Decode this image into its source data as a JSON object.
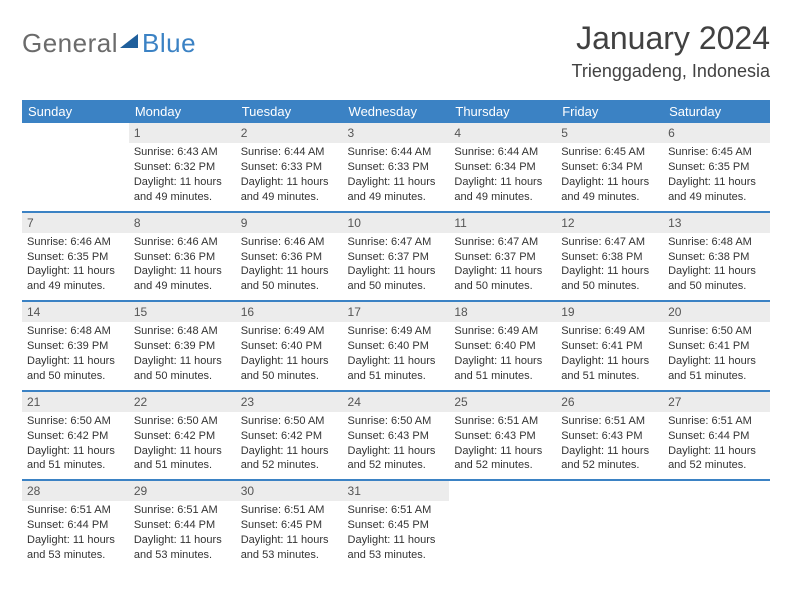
{
  "logo": {
    "general": "General",
    "blue": "Blue"
  },
  "title": "January 2024",
  "location": "Trienggadeng, Indonesia",
  "colors": {
    "header_bg": "#3b82c4",
    "header_fg": "#ffffff",
    "daynum_bg": "#ececec",
    "daynum_fg": "#555555",
    "body_text": "#333333",
    "logo_gray": "#6b6b6b",
    "logo_blue": "#3b82c4",
    "divider": "#3b82c4"
  },
  "typography": {
    "title_fontsize": 32,
    "location_fontsize": 18,
    "dayheader_fontsize": 13,
    "cell_fontsize": 11
  },
  "calendar": {
    "type": "table",
    "columns": [
      "Sunday",
      "Monday",
      "Tuesday",
      "Wednesday",
      "Thursday",
      "Friday",
      "Saturday"
    ],
    "weeks": [
      [
        null,
        {
          "n": "1",
          "sunrise": "6:43 AM",
          "sunset": "6:32 PM",
          "daylight": "11 hours and 49 minutes."
        },
        {
          "n": "2",
          "sunrise": "6:44 AM",
          "sunset": "6:33 PM",
          "daylight": "11 hours and 49 minutes."
        },
        {
          "n": "3",
          "sunrise": "6:44 AM",
          "sunset": "6:33 PM",
          "daylight": "11 hours and 49 minutes."
        },
        {
          "n": "4",
          "sunrise": "6:44 AM",
          "sunset": "6:34 PM",
          "daylight": "11 hours and 49 minutes."
        },
        {
          "n": "5",
          "sunrise": "6:45 AM",
          "sunset": "6:34 PM",
          "daylight": "11 hours and 49 minutes."
        },
        {
          "n": "6",
          "sunrise": "6:45 AM",
          "sunset": "6:35 PM",
          "daylight": "11 hours and 49 minutes."
        }
      ],
      [
        {
          "n": "7",
          "sunrise": "6:46 AM",
          "sunset": "6:35 PM",
          "daylight": "11 hours and 49 minutes."
        },
        {
          "n": "8",
          "sunrise": "6:46 AM",
          "sunset": "6:36 PM",
          "daylight": "11 hours and 49 minutes."
        },
        {
          "n": "9",
          "sunrise": "6:46 AM",
          "sunset": "6:36 PM",
          "daylight": "11 hours and 50 minutes."
        },
        {
          "n": "10",
          "sunrise": "6:47 AM",
          "sunset": "6:37 PM",
          "daylight": "11 hours and 50 minutes."
        },
        {
          "n": "11",
          "sunrise": "6:47 AM",
          "sunset": "6:37 PM",
          "daylight": "11 hours and 50 minutes."
        },
        {
          "n": "12",
          "sunrise": "6:47 AM",
          "sunset": "6:38 PM",
          "daylight": "11 hours and 50 minutes."
        },
        {
          "n": "13",
          "sunrise": "6:48 AM",
          "sunset": "6:38 PM",
          "daylight": "11 hours and 50 minutes."
        }
      ],
      [
        {
          "n": "14",
          "sunrise": "6:48 AM",
          "sunset": "6:39 PM",
          "daylight": "11 hours and 50 minutes."
        },
        {
          "n": "15",
          "sunrise": "6:48 AM",
          "sunset": "6:39 PM",
          "daylight": "11 hours and 50 minutes."
        },
        {
          "n": "16",
          "sunrise": "6:49 AM",
          "sunset": "6:40 PM",
          "daylight": "11 hours and 50 minutes."
        },
        {
          "n": "17",
          "sunrise": "6:49 AM",
          "sunset": "6:40 PM",
          "daylight": "11 hours and 51 minutes."
        },
        {
          "n": "18",
          "sunrise": "6:49 AM",
          "sunset": "6:40 PM",
          "daylight": "11 hours and 51 minutes."
        },
        {
          "n": "19",
          "sunrise": "6:49 AM",
          "sunset": "6:41 PM",
          "daylight": "11 hours and 51 minutes."
        },
        {
          "n": "20",
          "sunrise": "6:50 AM",
          "sunset": "6:41 PM",
          "daylight": "11 hours and 51 minutes."
        }
      ],
      [
        {
          "n": "21",
          "sunrise": "6:50 AM",
          "sunset": "6:42 PM",
          "daylight": "11 hours and 51 minutes."
        },
        {
          "n": "22",
          "sunrise": "6:50 AM",
          "sunset": "6:42 PM",
          "daylight": "11 hours and 51 minutes."
        },
        {
          "n": "23",
          "sunrise": "6:50 AM",
          "sunset": "6:42 PM",
          "daylight": "11 hours and 52 minutes."
        },
        {
          "n": "24",
          "sunrise": "6:50 AM",
          "sunset": "6:43 PM",
          "daylight": "11 hours and 52 minutes."
        },
        {
          "n": "25",
          "sunrise": "6:51 AM",
          "sunset": "6:43 PM",
          "daylight": "11 hours and 52 minutes."
        },
        {
          "n": "26",
          "sunrise": "6:51 AM",
          "sunset": "6:43 PM",
          "daylight": "11 hours and 52 minutes."
        },
        {
          "n": "27",
          "sunrise": "6:51 AM",
          "sunset": "6:44 PM",
          "daylight": "11 hours and 52 minutes."
        }
      ],
      [
        {
          "n": "28",
          "sunrise": "6:51 AM",
          "sunset": "6:44 PM",
          "daylight": "11 hours and 53 minutes."
        },
        {
          "n": "29",
          "sunrise": "6:51 AM",
          "sunset": "6:44 PM",
          "daylight": "11 hours and 53 minutes."
        },
        {
          "n": "30",
          "sunrise": "6:51 AM",
          "sunset": "6:45 PM",
          "daylight": "11 hours and 53 minutes."
        },
        {
          "n": "31",
          "sunrise": "6:51 AM",
          "sunset": "6:45 PM",
          "daylight": "11 hours and 53 minutes."
        },
        null,
        null,
        null
      ]
    ],
    "labels": {
      "sunrise": "Sunrise:",
      "sunset": "Sunset:",
      "daylight": "Daylight:"
    }
  }
}
